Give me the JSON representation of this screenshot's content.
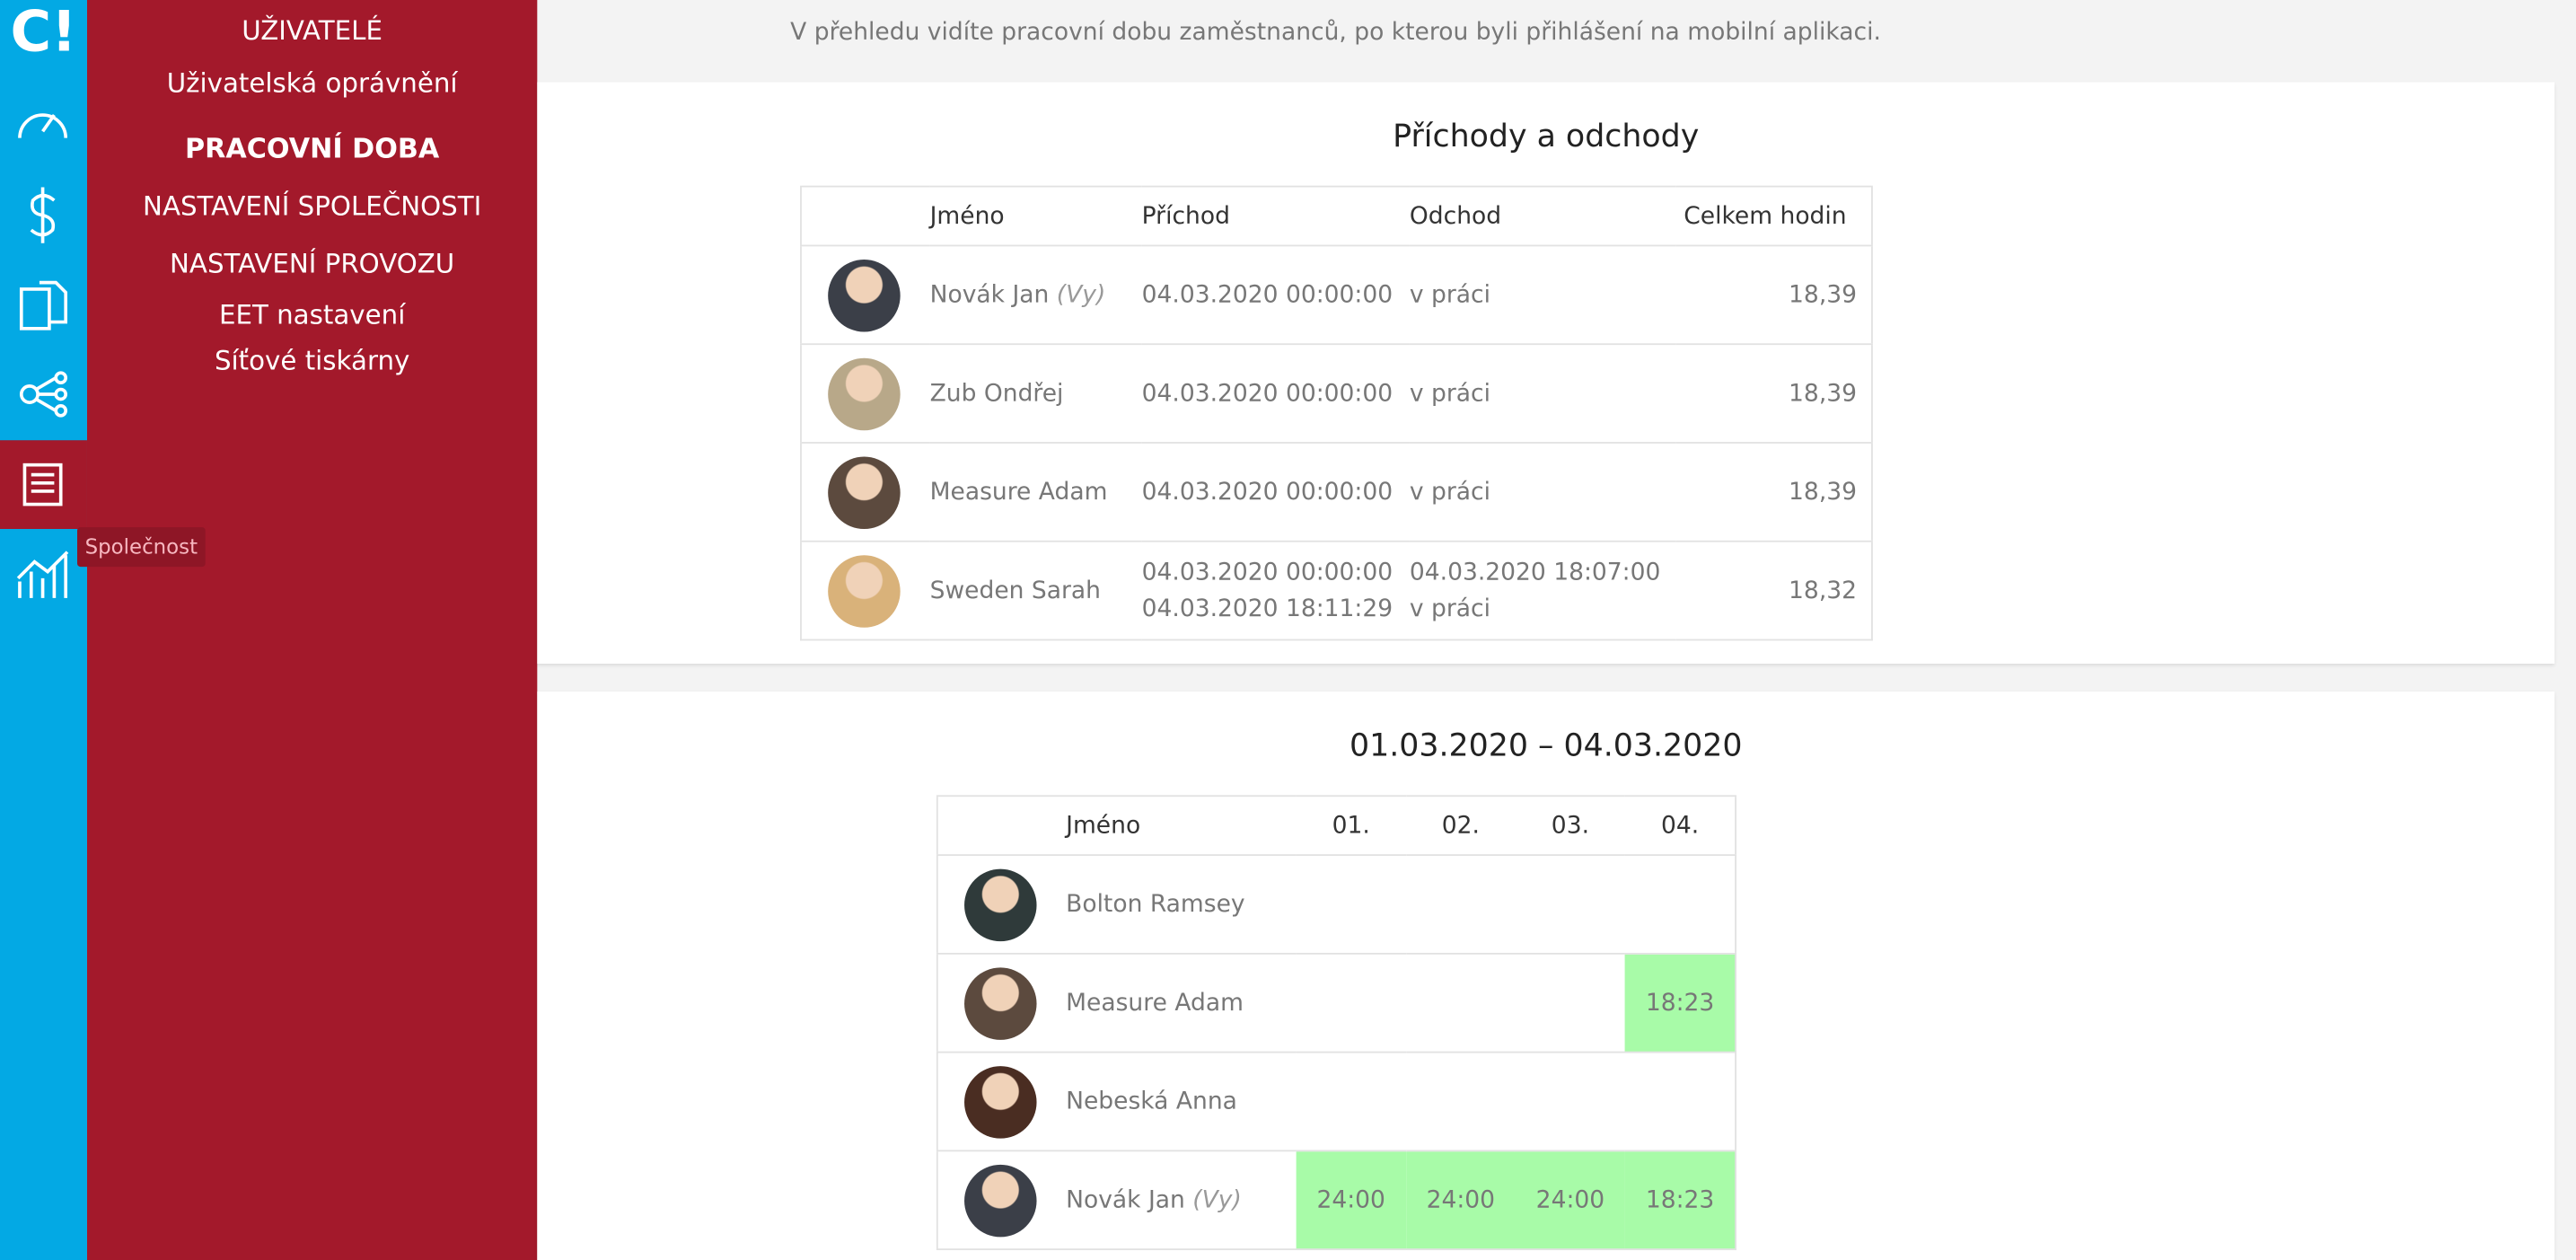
{
  "sidebar": {
    "logo": "C!",
    "tooltip": "Společnost"
  },
  "menu": [
    "UŽIVATELÉ",
    "Uživatelská oprávnění",
    "PRACOVNÍ DOBA",
    "NASTAVENÍ SPOLEČNOSTI",
    "NASTAVENÍ PROVOZU",
    "EET nastavení",
    "Síťové tiskárny"
  ],
  "intro": "V přehledu vidíte pracovní dobu zaměstnanců, po kterou byli přihlášení na mobilní aplikaci.",
  "attendance": {
    "title": "Příchody a odchody",
    "headers": [
      "Jméno",
      "Příchod",
      "Odchod",
      "Celkem hodin"
    ],
    "rows": [
      {
        "name": "Novák Jan",
        "note": "(Vy)",
        "arrivals": [
          "04.03.2020 00:00:00"
        ],
        "departures": [
          "v práci"
        ],
        "total": "18,39"
      },
      {
        "name": "Zub Ondřej",
        "arrivals": [
          "04.03.2020 00:00:00"
        ],
        "departures": [
          "v práci"
        ],
        "total": "18,39"
      },
      {
        "name": "Measure Adam",
        "arrivals": [
          "04.03.2020 00:00:00"
        ],
        "departures": [
          "v práci"
        ],
        "total": "18,39"
      },
      {
        "name": "Sweden Sarah",
        "arrivals": [
          "04.03.2020 00:00:00",
          "04.03.2020 18:11:29"
        ],
        "departures": [
          "04.03.2020 18:07:00",
          "v práci"
        ],
        "total": "18,32"
      }
    ]
  },
  "overview": {
    "title": "01.03.2020 – 04.03.2020",
    "headers": [
      "Jméno",
      "01.",
      "02.",
      "03.",
      "04."
    ],
    "rows": [
      {
        "name": "Bolton Ramsey",
        "cells": [
          null,
          null,
          null,
          null
        ]
      },
      {
        "name": "Measure Adam",
        "cells": [
          null,
          null,
          null,
          "18:23"
        ]
      },
      {
        "name": "Nebeská Anna",
        "cells": [
          null,
          null,
          null,
          null
        ]
      },
      {
        "name": "Novák Jan",
        "note": "(Vy)",
        "cells": [
          "24:00",
          "24:00",
          "24:00",
          "18:23"
        ]
      }
    ]
  }
}
